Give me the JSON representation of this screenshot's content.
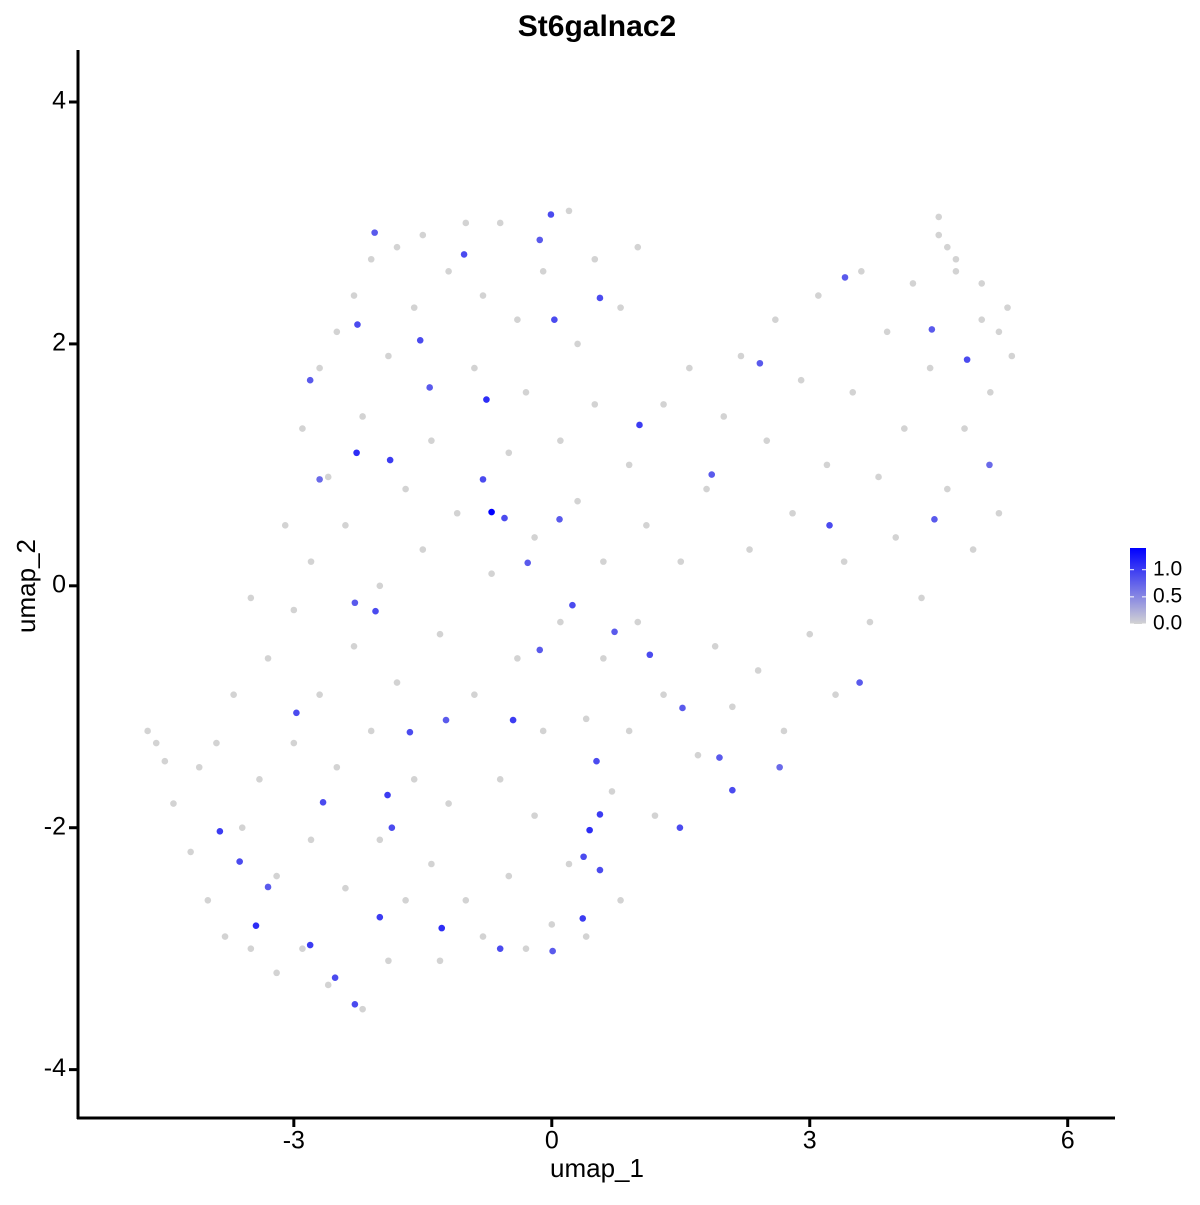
{
  "chart_data": {
    "type": "scatter",
    "title": "St6galnac2",
    "x_label": "umap_1",
    "y_label": "umap_2",
    "xlim": [
      -5.51,
      6.55
    ],
    "ylim": [
      -4.4,
      4.43
    ],
    "xticks": [
      -3,
      0,
      3,
      6
    ],
    "yticks": [
      -4,
      -2,
      0,
      2,
      4
    ],
    "low_color": "#d3d3d3",
    "high_color": "#0000ff",
    "color_limits": [
      0,
      1.4
    ],
    "color_ticks": [
      {
        "value": 0,
        "label": "0.0"
      },
      {
        "value": 0.5,
        "label": "0.5"
      },
      {
        "value": 1,
        "label": "1.0"
      }
    ],
    "x": [
      -4.7,
      -4.6,
      -4.5,
      -4.4,
      -4.2,
      -4.1,
      -4.0,
      -3.9,
      -3.8,
      -3.7,
      -3.6,
      -3.5,
      -3.5,
      -3.4,
      -3.3,
      -3.2,
      -3.2,
      -3.1,
      -3.0,
      -3.0,
      -2.9,
      -2.9,
      -2.8,
      -2.8,
      -2.7,
      -2.7,
      -2.6,
      -2.6,
      -2.5,
      -2.5,
      -2.4,
      -2.4,
      -2.3,
      -2.3,
      -2.2,
      -2.2,
      -2.1,
      -2.1,
      -2.0,
      -2.0,
      -1.9,
      -1.9,
      -1.8,
      -1.8,
      -1.7,
      -1.7,
      -1.6,
      -1.6,
      -1.5,
      -1.5,
      -1.4,
      -1.4,
      -1.3,
      -1.3,
      -1.2,
      -1.2,
      -1.1,
      -1.0,
      -1.0,
      -0.9,
      -0.9,
      -0.8,
      -0.8,
      -0.7,
      -0.6,
      -0.6,
      -0.5,
      -0.5,
      -0.4,
      -0.4,
      -0.3,
      -0.3,
      -0.2,
      -0.2,
      -0.1,
      -0.1,
      0.0,
      0.1,
      0.1,
      0.2,
      0.2,
      0.3,
      0.3,
      0.4,
      0.4,
      0.5,
      0.5,
      0.6,
      0.6,
      0.7,
      0.8,
      0.8,
      0.9,
      0.9,
      1.0,
      1.0,
      1.1,
      1.2,
      1.3,
      1.3,
      1.5,
      1.6,
      1.7,
      1.8,
      1.9,
      2.0,
      2.1,
      2.2,
      2.3,
      2.4,
      2.5,
      2.6,
      2.7,
      2.8,
      2.9,
      3.0,
      3.1,
      3.2,
      3.3,
      3.4,
      3.5,
      3.6,
      3.7,
      3.8,
      3.9,
      4.0,
      4.1,
      4.2,
      4.3,
      4.4,
      4.5,
      4.6,
      4.7,
      4.8,
      4.9,
      5.0,
      5.1,
      5.2,
      5.3,
      5.35,
      4.5,
      4.6,
      4.7,
      5.0,
      5.2,
      -0.7,
      -1.42,
      -0.76,
      1.02,
      -2.27,
      -1.88,
      -0.55,
      -0.28,
      -2.05,
      -2.29,
      -2.97,
      -1.91,
      -1.86,
      -2.0,
      -3.44,
      -1.28,
      0.01,
      0.56,
      0.44,
      0.37,
      -2.7,
      -0.01,
      -0.14,
      -2.06,
      -2.26,
      4.45,
      5.09,
      4.83,
      4.42,
      3.41,
      3.23,
      3.58,
      2.65,
      1.95,
      1.52,
      1.14,
      0.73,
      0.24,
      -0.14,
      -0.45,
      -1.23,
      -1.65,
      -2.66,
      -3.63,
      -3.86,
      -3.3,
      -2.81,
      -2.52,
      -2.29,
      -0.8,
      0.09,
      0.56,
      0.03,
      -1.53,
      -2.81,
      -1.02,
      2.42,
      1.86,
      0.52,
      1.49,
      2.1,
      0.36,
      0.56,
      -0.6
    ],
    "y": [
      -1.2,
      -1.3,
      -1.45,
      -1.8,
      -2.2,
      -1.5,
      -2.6,
      -1.3,
      -2.9,
      -0.9,
      -2.0,
      -3.0,
      -0.1,
      -1.6,
      -0.6,
      -3.2,
      -2.4,
      0.5,
      -1.3,
      -0.2,
      1.3,
      -3.0,
      0.2,
      -2.1,
      1.8,
      -0.9,
      -3.3,
      0.9,
      2.1,
      -1.5,
      -2.5,
      0.5,
      -0.5,
      2.4,
      1.4,
      -3.5,
      -1.2,
      2.7,
      0.0,
      -2.1,
      1.9,
      -3.1,
      -0.8,
      2.8,
      0.8,
      -2.6,
      2.3,
      -1.6,
      0.3,
      2.9,
      -2.3,
      1.2,
      -0.4,
      -3.1,
      2.6,
      -1.8,
      0.6,
      3.0,
      -2.6,
      1.8,
      -0.9,
      2.4,
      -2.9,
      0.1,
      3.0,
      -1.6,
      1.1,
      -2.4,
      2.2,
      -0.6,
      -3.0,
      1.6,
      0.4,
      -1.9,
      2.6,
      -1.2,
      -2.8,
      1.2,
      -0.3,
      3.1,
      -2.3,
      2.0,
      0.7,
      -1.1,
      -2.9,
      2.7,
      1.5,
      -0.6,
      0.2,
      -1.7,
      2.3,
      -2.6,
      1.0,
      -1.2,
      -0.3,
      2.8,
      0.5,
      -1.9,
      1.5,
      -0.9,
      0.2,
      1.8,
      -1.4,
      0.8,
      -0.5,
      1.4,
      -1.0,
      1.9,
      0.3,
      -0.7,
      1.2,
      2.2,
      -1.2,
      0.6,
      1.7,
      -0.4,
      2.4,
      1.0,
      -0.9,
      0.2,
      1.6,
      2.6,
      -0.3,
      0.9,
      2.1,
      0.4,
      1.3,
      2.5,
      -0.1,
      1.8,
      3.05,
      0.8,
      2.6,
      1.3,
      0.3,
      2.2,
      1.6,
      0.6,
      2.3,
      1.9,
      2.9,
      2.8,
      2.7,
      2.5,
      2.1,
      0.61,
      1.64,
      1.54,
      1.33,
      1.1,
      1.04,
      0.56,
      0.19,
      -0.21,
      -0.14,
      -1.05,
      -1.73,
      -2.0,
      -2.74,
      -2.81,
      -2.83,
      -3.02,
      -1.89,
      -2.02,
      -2.24,
      0.88,
      3.07,
      2.86,
      2.92,
      2.16,
      0.55,
      1.0,
      1.87,
      2.12,
      2.55,
      0.5,
      -0.8,
      -1.5,
      -1.42,
      -1.01,
      -0.57,
      -0.38,
      -0.16,
      -0.53,
      -1.11,
      -1.11,
      -1.21,
      -1.79,
      -2.28,
      -2.03,
      -2.49,
      -2.97,
      -3.24,
      -3.46,
      0.88,
      0.55,
      2.38,
      2.2,
      2.03,
      1.7,
      2.74,
      1.84,
      0.92,
      -1.45,
      -2.0,
      -1.69,
      -2.75,
      -2.35,
      -3.0
    ],
    "values": [
      0,
      0,
      0,
      0,
      0,
      0,
      0,
      0,
      0,
      0,
      0,
      0,
      0,
      0,
      0,
      0,
      0,
      0,
      0,
      0,
      0,
      0,
      0,
      0,
      0,
      0,
      0,
      0,
      0,
      0,
      0,
      0,
      0,
      0,
      0,
      0,
      0,
      0,
      0,
      0,
      0,
      0,
      0,
      0,
      0,
      0,
      0,
      0,
      0,
      0,
      0,
      0,
      0,
      0,
      0,
      0,
      0,
      0,
      0,
      0,
      0,
      0,
      0,
      0,
      0,
      0,
      0,
      0,
      0,
      0,
      0,
      0,
      0,
      0,
      0,
      0,
      0,
      0,
      0,
      0,
      0,
      0,
      0,
      0,
      0,
      0,
      0,
      0,
      0,
      0,
      0,
      0,
      0,
      0,
      0,
      0,
      0,
      0,
      0,
      0,
      0,
      0,
      0,
      0,
      0,
      0,
      0,
      0,
      0,
      0,
      0,
      0,
      0,
      0,
      0,
      0,
      0,
      0,
      0,
      0,
      0,
      0,
      0,
      0,
      0,
      0,
      0,
      0,
      0,
      0,
      0,
      0,
      0,
      0,
      0,
      0,
      0,
      0,
      0,
      0,
      0,
      0,
      0,
      0,
      0,
      1.4,
      0.8,
      1.1,
      1.0,
      1.1,
      1.0,
      0.9,
      0.8,
      0.9,
      0.8,
      0.9,
      1.0,
      0.9,
      1.0,
      1.1,
      1.1,
      0.8,
      1.0,
      1.1,
      0.9,
      0.7,
      0.9,
      0.8,
      0.8,
      0.9,
      0.8,
      0.7,
      0.9,
      0.8,
      0.8,
      0.9,
      0.8,
      0.7,
      0.8,
      0.8,
      0.9,
      0.8,
      0.9,
      0.8,
      1.0,
      0.8,
      0.9,
      0.9,
      0.9,
      1.0,
      0.8,
      1.0,
      0.9,
      0.9,
      0.9,
      0.8,
      0.9,
      0.9,
      0.9,
      0.8,
      0.9,
      0.8,
      0.8,
      0.9,
      0.9,
      0.9,
      1.0,
      0.9,
      0.9
    ]
  }
}
